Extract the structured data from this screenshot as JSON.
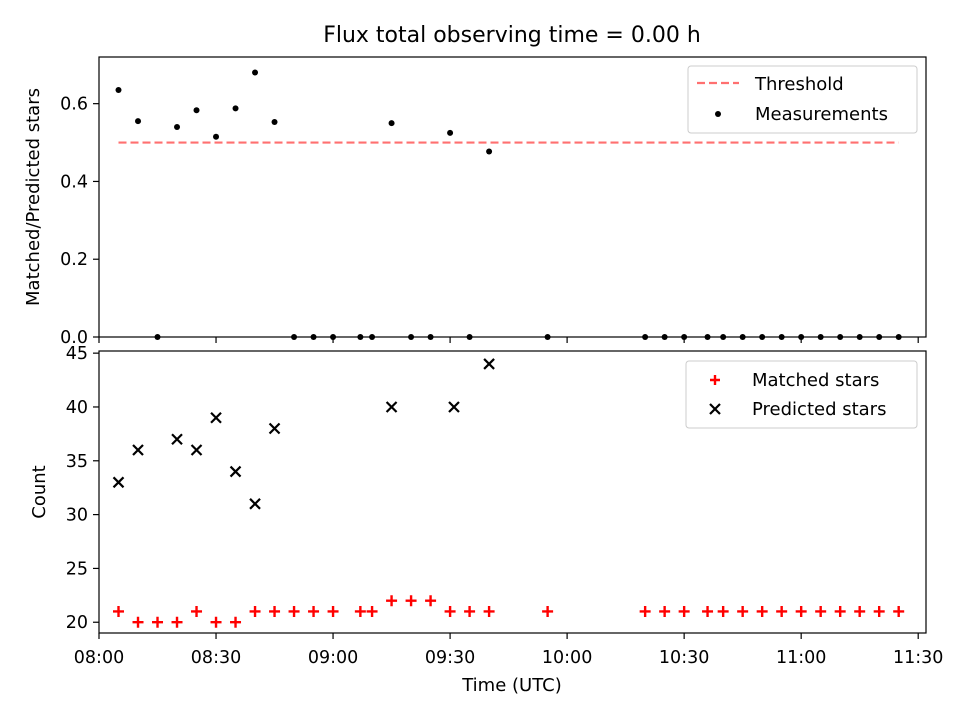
{
  "chart_data": [
    {
      "type": "scatter",
      "title": "Flux total observing time = 0.00 h",
      "xlabel": "",
      "ylabel": "Matched/Predicted stars",
      "ylim": [
        0.0,
        0.72
      ],
      "yticks": [
        "0.0",
        "0.2",
        "0.4",
        "0.6"
      ],
      "legend_position": "top-right",
      "threshold": {
        "name": "Threshold",
        "value": 0.5,
        "x_range": [
          "08:05",
          "11:25"
        ],
        "style": "dashed",
        "color": "#ff7070"
      },
      "series": [
        {
          "name": "Measurements",
          "color": "#000000",
          "marker": "dot",
          "x": [
            "08:05",
            "08:10",
            "08:15",
            "08:20",
            "08:25",
            "08:30",
            "08:35",
            "08:40",
            "08:45",
            "08:50",
            "08:55",
            "09:00",
            "09:07",
            "09:10",
            "09:15",
            "09:20",
            "09:25",
            "09:30",
            "09:35",
            "09:40",
            "09:55",
            "10:20",
            "10:25",
            "10:30",
            "10:36",
            "10:40",
            "10:45",
            "10:50",
            "10:55",
            "11:00",
            "11:05",
            "11:10",
            "11:15",
            "11:20",
            "11:25"
          ],
          "y": [
            0.635,
            0.555,
            0.0,
            0.54,
            0.583,
            0.515,
            0.588,
            0.68,
            0.553,
            0.0,
            0.0,
            0.0,
            0.0,
            0.0,
            0.55,
            0.0,
            0.0,
            0.525,
            0.0,
            0.477,
            0.0,
            0.0,
            0.0,
            0.0,
            0.0,
            0.0,
            0.0,
            0.0,
            0.0,
            0.0,
            0.0,
            0.0,
            0.0,
            0.0,
            0.0
          ]
        }
      ]
    },
    {
      "type": "scatter",
      "xlabel": "Time (UTC)",
      "ylabel": "Count",
      "ylim": [
        19,
        45.2
      ],
      "yticks": [
        "20",
        "25",
        "30",
        "35",
        "40",
        "45"
      ],
      "xlim": [
        "08:00",
        "11:32"
      ],
      "xticks": [
        "08:00",
        "08:30",
        "09:00",
        "09:30",
        "10:00",
        "10:30",
        "11:00",
        "11:30"
      ],
      "legend_position": "top-right",
      "series": [
        {
          "name": "Matched stars",
          "color": "#ff0000",
          "marker": "plus",
          "x": [
            "08:05",
            "08:10",
            "08:15",
            "08:20",
            "08:25",
            "08:30",
            "08:35",
            "08:40",
            "08:45",
            "08:50",
            "08:55",
            "09:00",
            "09:07",
            "09:10",
            "09:15",
            "09:20",
            "09:25",
            "09:30",
            "09:35",
            "09:40",
            "09:55",
            "10:20",
            "10:25",
            "10:30",
            "10:36",
            "10:40",
            "10:45",
            "10:50",
            "10:55",
            "11:00",
            "11:05",
            "11:10",
            "11:15",
            "11:20",
            "11:25"
          ],
          "y": [
            21,
            20,
            20,
            20,
            21,
            20,
            20,
            21,
            21,
            21,
            21,
            21,
            21,
            21,
            22,
            22,
            22,
            21,
            21,
            21,
            21,
            21,
            21,
            21,
            21,
            21,
            21,
            21,
            21,
            21,
            21,
            21,
            21,
            21,
            21
          ]
        },
        {
          "name": "Predicted stars",
          "color": "#000000",
          "marker": "x",
          "x": [
            "08:05",
            "08:10",
            "08:20",
            "08:25",
            "08:30",
            "08:35",
            "08:40",
            "08:45",
            "09:15",
            "09:31",
            "09:40"
          ],
          "y": [
            33,
            36,
            37,
            36,
            39,
            34,
            31,
            38,
            40,
            40,
            44
          ]
        }
      ]
    }
  ]
}
